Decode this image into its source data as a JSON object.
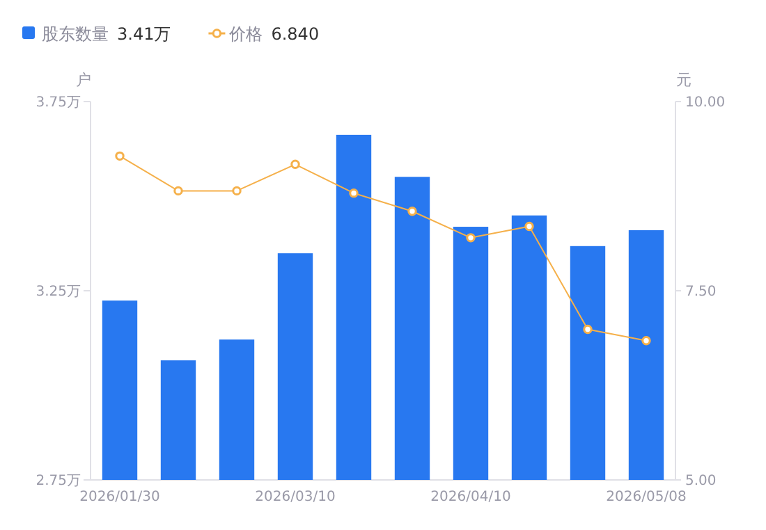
{
  "chart_data": {
    "type": "bar",
    "categories": [
      "2026/01/30",
      null,
      null,
      "2026/03/10",
      null,
      null,
      "2026/04/10",
      null,
      null,
      "2026/05/08"
    ],
    "series": [
      {
        "name": "股东数量",
        "color": "#2878f0",
        "values": [
          3.224,
          3.066,
          3.121,
          3.349,
          3.662,
          3.551,
          3.419,
          3.449,
          3.368,
          3.41
        ]
      },
      {
        "name": "价格",
        "type": "line",
        "axis": "y2",
        "color": "#f5b04a",
        "values": [
          9.28,
          8.82,
          8.82,
          9.17,
          8.79,
          8.55,
          8.2,
          8.35,
          6.99,
          6.84
        ]
      }
    ],
    "ylim": [
      2.75,
      3.75
    ],
    "yticks": [
      {
        "value": 2.75,
        "label": "2.75万"
      },
      {
        "value": 3.25,
        "label": "3.25万"
      },
      {
        "value": 3.75,
        "label": "3.75万"
      }
    ],
    "y2lim": [
      5,
      10
    ],
    "y2ticks": [
      {
        "value": 5,
        "label": "5.00"
      },
      {
        "value": 7.5,
        "label": "7.50"
      },
      {
        "value": 10,
        "label": "10.00"
      }
    ],
    "ylabel": "户",
    "y2label": "元",
    "legend": "top left",
    "marker": "circle",
    "annotations": [
      "3.41万",
      "6.840"
    ]
  }
}
